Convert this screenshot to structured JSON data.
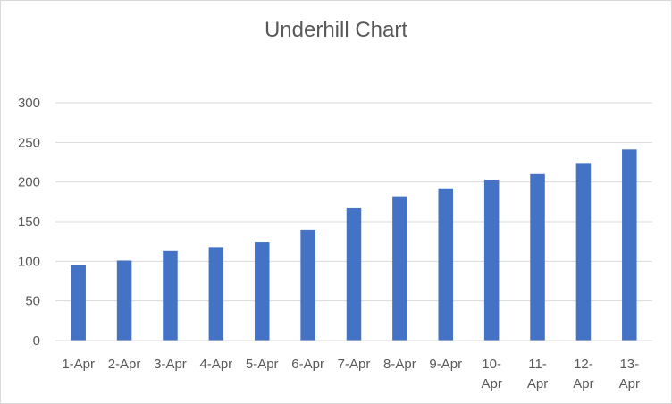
{
  "chart_data": {
    "type": "bar",
    "title": "Underhill Chart",
    "categories": [
      "1-Apr",
      "2-Apr",
      "3-Apr",
      "4-Apr",
      "5-Apr",
      "6-Apr",
      "7-Apr",
      "8-Apr",
      "9-Apr",
      "10-Apr",
      "11-Apr",
      "12-Apr",
      "13-Apr"
    ],
    "series": [
      {
        "values": [
          95,
          101,
          113,
          118,
          124,
          140,
          167,
          182,
          192,
          203,
          210,
          224,
          241
        ],
        "color": "#4472c4"
      }
    ],
    "ylim": [
      0,
      300
    ],
    "yticks": [
      0,
      50,
      100,
      150,
      200,
      250,
      300
    ],
    "grid": true,
    "legend": "none"
  }
}
